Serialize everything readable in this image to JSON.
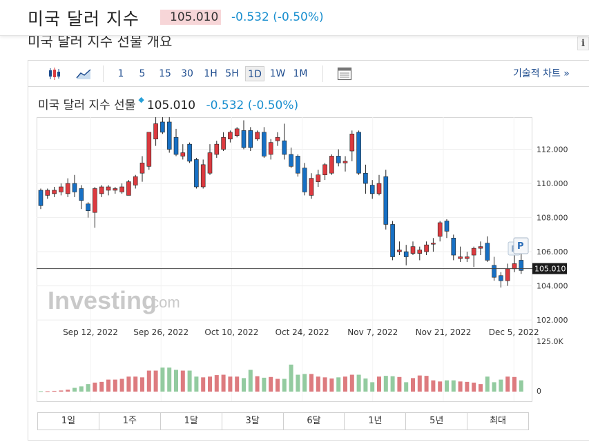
{
  "header": {
    "title": "미국 달러 지수",
    "price": "105.010",
    "change": "-0.532 (-0.50%)",
    "section_title": "미국 달러 지수 선물 개요",
    "info_icon": "i"
  },
  "toolbar": {
    "intervals": [
      "1",
      "5",
      "15",
      "30",
      "1H",
      "5H",
      "1D",
      "1W",
      "1M"
    ],
    "active_interval": "1D",
    "tech_chart_label": "기술적 차트 »"
  },
  "chart": {
    "title": "미국 달러 지수 선물",
    "price": "105.010",
    "change": "-0.532",
    "change_pct": "(-0.50%)",
    "watermark_main": "Investing",
    "watermark_sub": ".com",
    "current_label": "105.010",
    "volume_max_label": "125.0K",
    "volume_zero_label": "0",
    "marker_label": "P"
  },
  "chart_data": {
    "type": "candlestick",
    "y_ticks": [
      "102.000",
      "104.000",
      "106.000",
      "108.000",
      "110.000",
      "112.000"
    ],
    "ylim": [
      101.6,
      113.8
    ],
    "x_labels": [
      "Sep 12, 2022",
      "Sep 26, 2022",
      "Oct 10, 2022",
      "Oct 24, 2022",
      "Nov 7, 2022",
      "Nov 21, 2022",
      "Dec 5, 2022"
    ],
    "current_value": 105.01,
    "candles": [
      [
        109.6,
        108.7,
        109.7,
        108.5
      ],
      [
        109.3,
        109.6,
        109.7,
        109.1
      ],
      [
        109.4,
        109.6,
        109.8,
        109.2
      ],
      [
        109.5,
        109.8,
        110.0,
        109.3
      ],
      [
        109.4,
        110.0,
        110.3,
        109.2
      ],
      [
        110.0,
        109.5,
        110.5,
        109.2
      ],
      [
        109.7,
        109.0,
        109.9,
        108.5
      ],
      [
        108.8,
        108.4,
        108.9,
        108.0
      ],
      [
        108.3,
        109.7,
        109.8,
        107.4
      ],
      [
        109.4,
        109.8,
        109.9,
        109.2
      ],
      [
        109.6,
        109.8,
        109.9,
        109.3
      ],
      [
        109.6,
        109.7,
        109.8,
        109.4
      ],
      [
        109.5,
        109.8,
        110.0,
        109.4
      ],
      [
        109.3,
        110.1,
        110.2,
        109.3
      ],
      [
        109.9,
        110.4,
        110.5,
        109.7
      ],
      [
        110.6,
        111.2,
        111.6,
        110.1
      ],
      [
        111.0,
        113.0,
        113.0,
        110.8
      ],
      [
        112.6,
        113.5,
        114.1,
        112.2
      ],
      [
        113.6,
        113.0,
        114.3,
        112.9
      ],
      [
        113.6,
        112.0,
        114.4,
        111.8
      ],
      [
        112.7,
        111.7,
        113.2,
        111.6
      ],
      [
        111.6,
        111.8,
        112.3,
        111.4
      ],
      [
        112.3,
        111.3,
        112.4,
        111.2
      ],
      [
        111.4,
        109.8,
        111.5,
        109.7
      ],
      [
        109.8,
        111.1,
        111.4,
        109.7
      ],
      [
        110.6,
        111.8,
        112.3,
        110.5
      ],
      [
        111.7,
        112.3,
        112.5,
        111.5
      ],
      [
        112.0,
        112.7,
        113.0,
        111.9
      ],
      [
        112.6,
        113.0,
        113.1,
        112.4
      ],
      [
        112.8,
        113.2,
        113.3,
        112.7
      ],
      [
        113.1,
        112.1,
        113.7,
        112.0
      ],
      [
        113.1,
        112.1,
        113.3,
        111.9
      ],
      [
        112.6,
        113.0,
        113.1,
        112.5
      ],
      [
        113.0,
        111.6,
        113.3,
        111.5
      ],
      [
        111.7,
        112.4,
        112.6,
        111.4
      ],
      [
        112.5,
        112.7,
        113.0,
        112.2
      ],
      [
        112.5,
        111.7,
        113.5,
        111.4
      ],
      [
        111.7,
        111.0,
        112.1,
        110.9
      ],
      [
        111.6,
        110.6,
        111.7,
        110.4
      ],
      [
        110.9,
        109.5,
        111.2,
        109.3
      ],
      [
        109.3,
        110.3,
        110.6,
        109.1
      ],
      [
        110.1,
        110.5,
        110.8,
        109.8
      ],
      [
        110.5,
        111.1,
        111.2,
        110.2
      ],
      [
        110.6,
        111.6,
        111.7,
        110.5
      ],
      [
        111.6,
        111.2,
        112.0,
        111.0
      ],
      [
        111.2,
        111.3,
        111.6,
        110.7
      ],
      [
        111.9,
        112.9,
        113.1,
        111.3
      ],
      [
        113.0,
        110.6,
        113.1,
        110.5
      ],
      [
        110.6,
        110.0,
        111.1,
        109.4
      ],
      [
        109.9,
        109.4,
        110.2,
        109.1
      ],
      [
        109.4,
        110.0,
        110.5,
        109.3
      ],
      [
        110.4,
        107.6,
        110.8,
        107.3
      ],
      [
        107.6,
        105.7,
        107.8,
        105.5
      ],
      [
        106.0,
        106.1,
        106.6,
        105.8
      ],
      [
        106.0,
        105.7,
        106.4,
        105.2
      ],
      [
        105.9,
        106.3,
        106.6,
        105.8
      ],
      [
        105.9,
        106.1,
        106.3,
        105.5
      ],
      [
        106.0,
        106.4,
        106.6,
        105.8
      ],
      [
        106.5,
        106.5,
        106.8,
        106.0
      ],
      [
        106.9,
        107.7,
        107.8,
        106.6
      ],
      [
        107.8,
        107.2,
        107.9,
        106.8
      ],
      [
        106.8,
        105.8,
        107.0,
        105.5
      ],
      [
        105.6,
        105.7,
        106.3,
        105.4
      ],
      [
        105.6,
        105.7,
        106.0,
        105.4
      ],
      [
        105.8,
        106.2,
        106.3,
        105.1
      ],
      [
        106.2,
        106.3,
        106.6,
        105.8
      ],
      [
        106.5,
        105.5,
        106.9,
        105.4
      ],
      [
        105.2,
        104.5,
        105.7,
        104.3
      ],
      [
        104.6,
        104.3,
        104.8,
        103.9
      ],
      [
        104.3,
        105.0,
        105.3,
        104.0
      ],
      [
        105.0,
        105.3,
        105.8,
        104.8
      ],
      [
        105.5,
        104.9,
        106.0,
        104.7
      ]
    ],
    "volume_ylim": [
      0,
      125000
    ],
    "volumes": [
      1000,
      1000,
      2000,
      3000,
      5000,
      10000,
      14000,
      20000,
      24000,
      26000,
      32000,
      32000,
      34000,
      40000,
      40000,
      38000,
      56000,
      56000,
      64000,
      64000,
      58000,
      56000,
      56000,
      40000,
      38000,
      40000,
      44000,
      45000,
      40000,
      40000,
      36000,
      58000,
      41000,
      37000,
      39000,
      34000,
      34000,
      72000,
      45000,
      47000,
      47000,
      40000,
      38000,
      35000,
      38000,
      40000,
      45000,
      45000,
      35000,
      25000,
      40000,
      42000,
      41000,
      39000,
      25000,
      36000,
      43000,
      42000,
      30000,
      27000,
      30000,
      30000,
      27000,
      26000,
      24000,
      20000,
      40000,
      25000,
      32000,
      40000,
      39000,
      30000
    ]
  },
  "ranges": [
    "1일",
    "1주",
    "1달",
    "3달",
    "6달",
    "1년",
    "5년",
    "최대"
  ],
  "colors": {
    "up": "#dc3a3f",
    "down": "#1770c4",
    "volume_up": "#dd7b7f",
    "volume_down": "#93cba0",
    "link": "#1f4d8f",
    "change": "#1a8fcf",
    "price_bg": "#f7d6d8"
  }
}
